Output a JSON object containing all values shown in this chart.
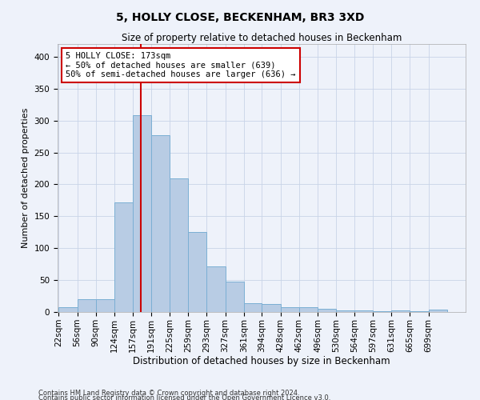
{
  "title": "5, HOLLY CLOSE, BECKENHAM, BR3 3XD",
  "subtitle": "Size of property relative to detached houses in Beckenham",
  "xlabel": "Distribution of detached houses by size in Beckenham",
  "ylabel": "Number of detached properties",
  "bar_color": "#b8cce4",
  "bar_edge_color": "#7bafd4",
  "bin_labels": [
    "22sqm",
    "56sqm",
    "90sqm",
    "124sqm",
    "157sqm",
    "191sqm",
    "225sqm",
    "259sqm",
    "293sqm",
    "327sqm",
    "361sqm",
    "394sqm",
    "428sqm",
    "462sqm",
    "496sqm",
    "530sqm",
    "564sqm",
    "597sqm",
    "631sqm",
    "665sqm",
    "699sqm"
  ],
  "bin_edges": [
    22,
    56,
    90,
    124,
    157,
    191,
    225,
    259,
    293,
    327,
    361,
    394,
    428,
    462,
    496,
    530,
    564,
    597,
    631,
    665,
    699,
    733
  ],
  "bar_heights": [
    7,
    20,
    20,
    172,
    308,
    277,
    210,
    125,
    72,
    48,
    14,
    12,
    8,
    8,
    5,
    3,
    2,
    1,
    3,
    1,
    4
  ],
  "vline_x": 173,
  "vline_color": "#cc0000",
  "annotation_line1": "5 HOLLY CLOSE: 173sqm",
  "annotation_line2": "← 50% of detached houses are smaller (639)",
  "annotation_line3": "50% of semi-detached houses are larger (636) →",
  "annotation_box_color": "#ffffff",
  "annotation_box_edge": "#cc0000",
  "ylim": [
    0,
    420
  ],
  "yticks": [
    0,
    50,
    100,
    150,
    200,
    250,
    300,
    350,
    400
  ],
  "grid_color": "#c8d4e8",
  "bg_color": "#eef2fa",
  "footnote1": "Contains HM Land Registry data © Crown copyright and database right 2024.",
  "footnote2": "Contains public sector information licensed under the Open Government Licence v3.0."
}
